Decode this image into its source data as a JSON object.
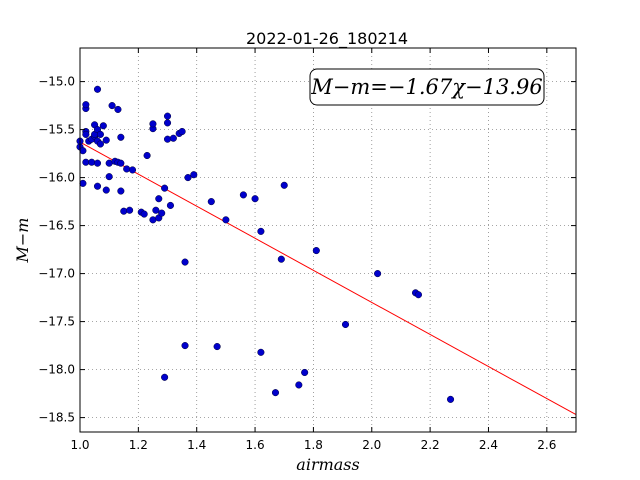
{
  "chart_data": {
    "type": "scatter",
    "title": "2022-01-26_180214",
    "xlabel": "airmass",
    "ylabel": "M−m",
    "xlim": [
      1.0,
      2.7
    ],
    "ylim": [
      -18.65,
      -14.65
    ],
    "x_ticks": [
      1.0,
      1.2,
      1.4,
      1.6,
      1.8,
      2.0,
      2.2,
      2.4,
      2.6
    ],
    "x_tick_labels": [
      "1.0",
      "1.2",
      "1.4",
      "1.6",
      "1.8",
      "2.0",
      "2.2",
      "2.4",
      "2.6"
    ],
    "y_ticks": [
      -15.0,
      -15.5,
      -16.0,
      -16.5,
      -17.0,
      -17.5,
      -18.0,
      -18.5
    ],
    "y_tick_labels": [
      "−15.0",
      "−15.5",
      "−16.0",
      "−16.5",
      "−17.0",
      "−17.5",
      "−18.0",
      "−18.5"
    ],
    "grid": true,
    "annotation": "M−m=−1.67χ−13.96",
    "annotation_position": "top-right",
    "fit_line": {
      "slope": -1.67,
      "intercept": -13.96,
      "color": "#ff0000"
    },
    "marker_color": "#0000cc",
    "points": [
      [
        1.0,
        -15.68
      ],
      [
        1.0,
        -15.62
      ],
      [
        1.01,
        -16.06
      ],
      [
        1.01,
        -15.72
      ],
      [
        1.02,
        -15.28
      ],
      [
        1.02,
        -15.24
      ],
      [
        1.02,
        -15.52
      ],
      [
        1.02,
        -15.55
      ],
      [
        1.02,
        -15.84
      ],
      [
        1.03,
        -15.62
      ],
      [
        1.04,
        -15.84
      ],
      [
        1.04,
        -15.6
      ],
      [
        1.05,
        -15.45
      ],
      [
        1.05,
        -15.57
      ],
      [
        1.05,
        -15.55
      ],
      [
        1.06,
        -15.62
      ],
      [
        1.06,
        -15.5
      ],
      [
        1.06,
        -15.85
      ],
      [
        1.06,
        -16.09
      ],
      [
        1.06,
        -15.08
      ],
      [
        1.07,
        -15.55
      ],
      [
        1.07,
        -15.65
      ],
      [
        1.08,
        -15.46
      ],
      [
        1.09,
        -15.61
      ],
      [
        1.09,
        -16.13
      ],
      [
        1.1,
        -15.99
      ],
      [
        1.1,
        -15.85
      ],
      [
        1.11,
        -15.25
      ],
      [
        1.12,
        -15.83
      ],
      [
        1.13,
        -15.84
      ],
      [
        1.13,
        -15.29
      ],
      [
        1.14,
        -15.85
      ],
      [
        1.14,
        -16.14
      ],
      [
        1.14,
        -15.58
      ],
      [
        1.15,
        -16.35
      ],
      [
        1.16,
        -15.91
      ],
      [
        1.17,
        -16.34
      ],
      [
        1.18,
        -15.92
      ],
      [
        1.21,
        -16.36
      ],
      [
        1.22,
        -16.38
      ],
      [
        1.23,
        -15.77
      ],
      [
        1.25,
        -15.49
      ],
      [
        1.25,
        -15.44
      ],
      [
        1.25,
        -16.44
      ],
      [
        1.26,
        -16.34
      ],
      [
        1.27,
        -16.22
      ],
      [
        1.27,
        -16.42
      ],
      [
        1.28,
        -16.37
      ],
      [
        1.29,
        -16.11
      ],
      [
        1.29,
        -18.08
      ],
      [
        1.3,
        -15.6
      ],
      [
        1.3,
        -15.43
      ],
      [
        1.3,
        -15.36
      ],
      [
        1.31,
        -16.29
      ],
      [
        1.32,
        -15.59
      ],
      [
        1.34,
        -15.54
      ],
      [
        1.35,
        -15.52
      ],
      [
        1.36,
        -16.88
      ],
      [
        1.36,
        -17.75
      ],
      [
        1.37,
        -16.0
      ],
      [
        1.39,
        -15.97
      ],
      [
        1.45,
        -16.25
      ],
      [
        1.47,
        -17.76
      ],
      [
        1.5,
        -16.44
      ],
      [
        1.56,
        -16.18
      ],
      [
        1.6,
        -16.22
      ],
      [
        1.62,
        -16.56
      ],
      [
        1.62,
        -17.82
      ],
      [
        1.67,
        -18.24
      ],
      [
        1.69,
        -16.85
      ],
      [
        1.7,
        -16.08
      ],
      [
        1.75,
        -18.16
      ],
      [
        1.77,
        -18.03
      ],
      [
        1.81,
        -16.76
      ],
      [
        1.91,
        -17.53
      ],
      [
        2.02,
        -17.0
      ],
      [
        2.15,
        -17.2
      ],
      [
        2.16,
        -17.22
      ],
      [
        2.27,
        -18.31
      ]
    ]
  }
}
